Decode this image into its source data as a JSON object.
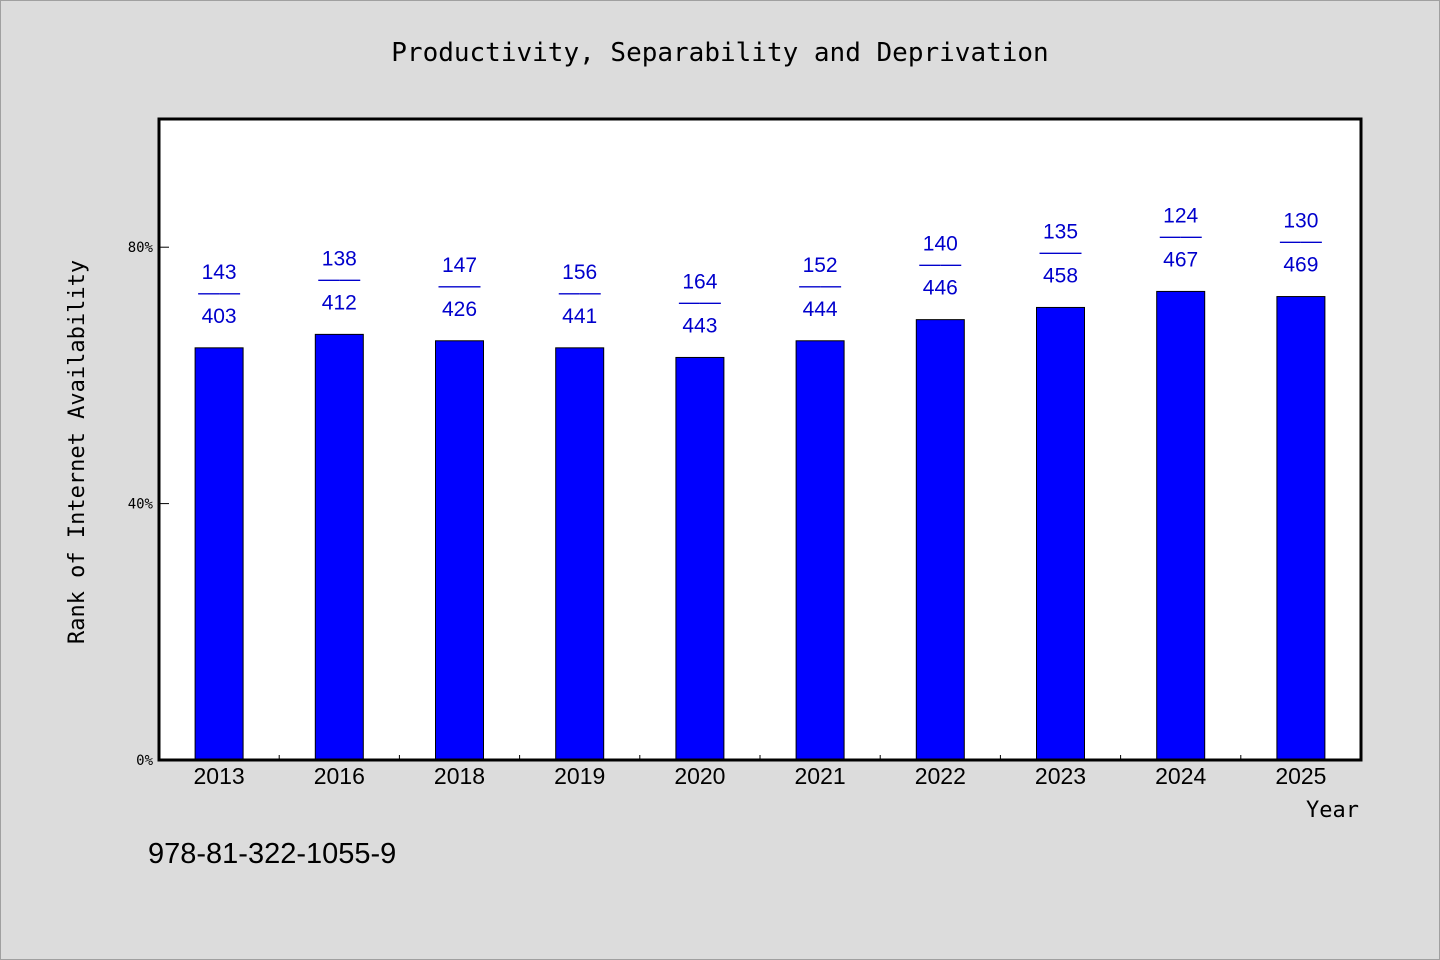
{
  "chart_data": {
    "type": "bar",
    "title": "Productivity, Separability and Deprivation",
    "xlabel": "Year",
    "ylabel": "Rank of Internet Availability",
    "categories": [
      "2013",
      "2016",
      "2018",
      "2019",
      "2020",
      "2021",
      "2022",
      "2023",
      "2024",
      "2025"
    ],
    "values": [
      64.3,
      66.4,
      65.4,
      64.3,
      62.8,
      65.4,
      68.7,
      70.6,
      73.1,
      72.3
    ],
    "data_labels_top": [
      "143",
      "138",
      "147",
      "156",
      "164",
      "152",
      "140",
      "135",
      "124",
      "130"
    ],
    "data_labels_bottom": [
      "403",
      "412",
      "426",
      "441",
      "443",
      "444",
      "446",
      "458",
      "467",
      "469"
    ],
    "label_separator": "——",
    "ylim": [
      0,
      100
    ],
    "yticks": [
      0,
      40,
      80
    ],
    "ytick_labels": [
      "0%",
      "40%",
      "80%"
    ],
    "grid": false,
    "bar_color": "#0000ff",
    "label_color": "#0000cc"
  },
  "footer": {
    "isbn": "978-81-322-1055-9"
  }
}
